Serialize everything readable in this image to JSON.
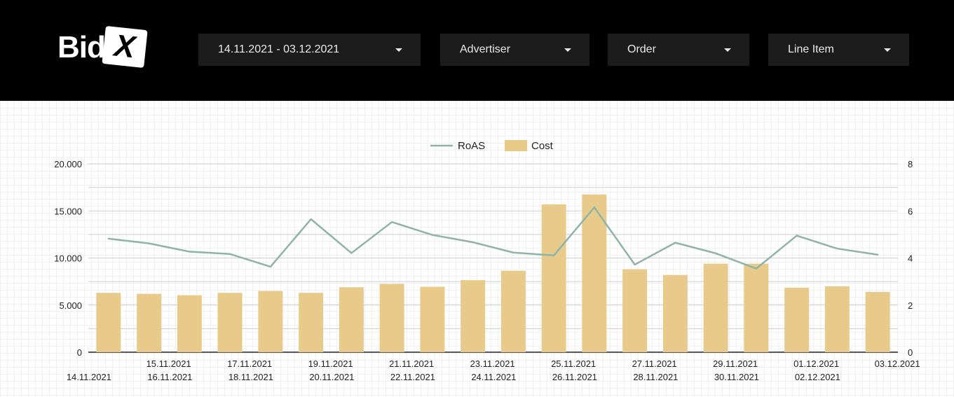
{
  "logo": {
    "text": "Bid",
    "mark": "X"
  },
  "filters": {
    "date_range": "14.11.2021 - 03.12.2021",
    "advertiser": "Advertiser",
    "order": "Order",
    "line_item": "Line Item"
  },
  "colors": {
    "bar": "#e8cb8b",
    "line": "#8fb3a6",
    "header_bg": "#000000",
    "filter_bg": "#1c1c1c"
  },
  "chart_data": {
    "type": "bar",
    "categories": [
      "14.11.2021",
      "15.11.2021",
      "16.11.2021",
      "17.11.2021",
      "18.11.2021",
      "19.11.2021",
      "20.11.2021",
      "21.11.2021",
      "22.11.2021",
      "23.11.2021",
      "24.11.2021",
      "25.11.2021",
      "26.11.2021",
      "27.11.2021",
      "28.11.2021",
      "29.11.2021",
      "30.11.2021",
      "01.12.2021",
      "02.12.2021",
      "03.12.2021"
    ],
    "series": [
      {
        "name": "Cost",
        "type": "bar",
        "axis": "left",
        "values": [
          6300,
          6200,
          6050,
          6300,
          6500,
          6300,
          6900,
          7250,
          6950,
          7650,
          8650,
          15700,
          16750,
          8800,
          8200,
          9400,
          9400,
          6850,
          7000,
          6400
        ]
      },
      {
        "name": "RoAS",
        "type": "line",
        "axis": "right",
        "values": [
          4.82,
          4.62,
          4.27,
          4.17,
          3.63,
          5.65,
          4.21,
          5.53,
          4.98,
          4.67,
          4.23,
          4.11,
          6.15,
          3.72,
          4.65,
          4.2,
          3.55,
          4.95,
          4.4,
          4.14
        ]
      }
    ],
    "legend_order": [
      "RoAS",
      "Cost"
    ],
    "yticks_left": [
      "0",
      "5.000",
      "10.000",
      "15.000",
      "20.000"
    ],
    "yticks_right": [
      "0",
      "2",
      "4",
      "6",
      "8"
    ],
    "ylim_left": [
      0,
      20000
    ],
    "ylim_right": [
      0,
      8
    ],
    "grid": true,
    "legend_position": "top-center"
  }
}
